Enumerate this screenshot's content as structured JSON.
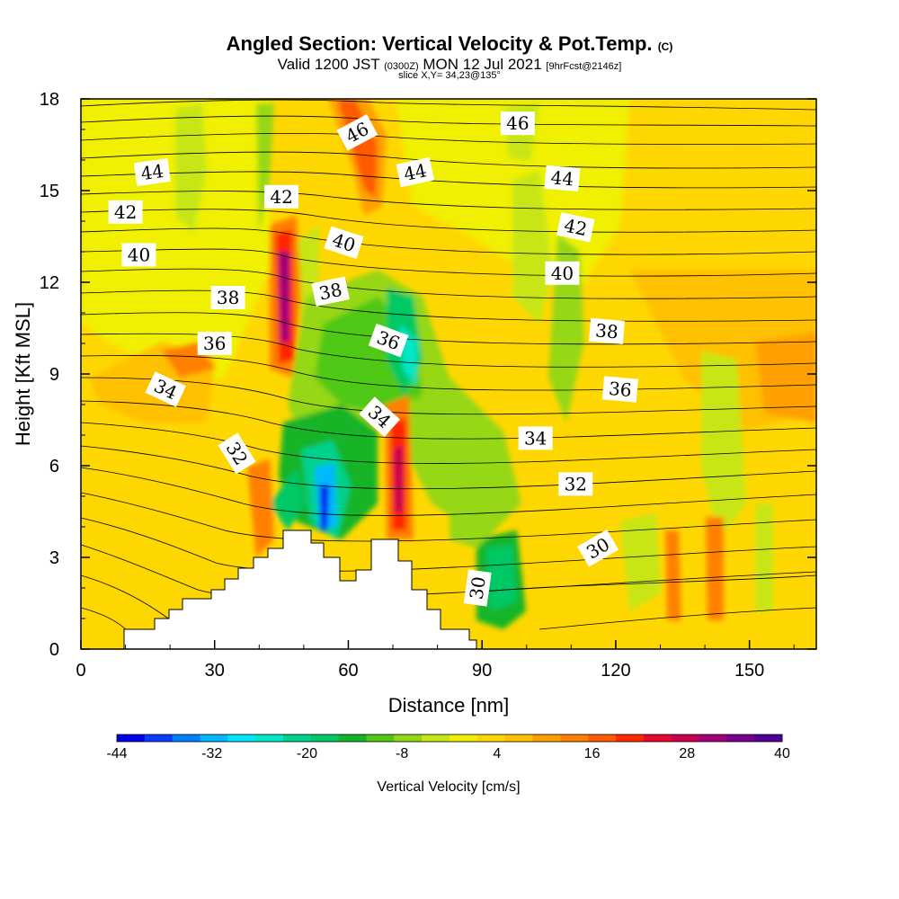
{
  "header": {
    "title_main": "Angled Section: Vertical Velocity & Pot.Temp.",
    "title_unit": "(C)",
    "valid_prefix": "Valid 1200 JST",
    "valid_utc": "(0300Z)",
    "valid_date": "MON 12 Jul 2021",
    "forecast": "[9hrFcst@2146z]",
    "slice": "slice X,Y= 34,23@135°"
  },
  "chart_data": {
    "type": "heatmap",
    "xlabel": "Distance [nm]",
    "ylabel": "Height [Kft MSL]",
    "xlim": [
      0,
      165
    ],
    "ylim": [
      0,
      18
    ],
    "x_ticks": [
      "0",
      "30",
      "60",
      "90",
      "120",
      "150"
    ],
    "x_tick_values": [
      0,
      30,
      60,
      90,
      120,
      150
    ],
    "y_ticks": [
      "0",
      "3",
      "6",
      "9",
      "12",
      "15",
      "18"
    ],
    "y_tick_values": [
      0,
      3,
      6,
      9,
      12,
      15,
      18
    ],
    "colorbar": {
      "title": "Vertical Velocity [cm/s]",
      "tick_labels": [
        "-44",
        "-32",
        "-20",
        "-8",
        "4",
        "16",
        "28",
        "40"
      ],
      "min": -44,
      "max": 40,
      "colors": [
        "#0000ee",
        "#0a3cff",
        "#0080ff",
        "#00b8ff",
        "#00e6ff",
        "#00e6c8",
        "#00d28c",
        "#00c864",
        "#14b428",
        "#50c814",
        "#96d714",
        "#c8e614",
        "#f0f000",
        "#ffd700",
        "#ffc000",
        "#ffa000",
        "#ff8000",
        "#ff5a00",
        "#ff2800",
        "#e60a32",
        "#c80050",
        "#a00078",
        "#78008c",
        "#500096"
      ]
    },
    "contour_labels": [
      {
        "text": "46",
        "x": 62,
        "y": 16.9,
        "angle": -28
      },
      {
        "text": "46",
        "x": 98,
        "y": 17.2,
        "angle": 0
      },
      {
        "text": "44",
        "x": 16,
        "y": 15.6,
        "angle": -8
      },
      {
        "text": "44",
        "x": 75,
        "y": 15.6,
        "angle": -12
      },
      {
        "text": "44",
        "x": 108,
        "y": 15.4,
        "angle": 5
      },
      {
        "text": "42",
        "x": 10,
        "y": 14.3,
        "angle": 0
      },
      {
        "text": "42",
        "x": 45,
        "y": 14.8,
        "angle": 0
      },
      {
        "text": "42",
        "x": 111,
        "y": 13.8,
        "angle": 12
      },
      {
        "text": "40",
        "x": 13,
        "y": 12.9,
        "angle": 0
      },
      {
        "text": "40",
        "x": 59,
        "y": 13.3,
        "angle": 18
      },
      {
        "text": "40",
        "x": 108,
        "y": 12.3,
        "angle": 0
      },
      {
        "text": "38",
        "x": 33,
        "y": 11.5,
        "angle": 0
      },
      {
        "text": "38",
        "x": 56,
        "y": 11.7,
        "angle": -12
      },
      {
        "text": "38",
        "x": 118,
        "y": 10.4,
        "angle": 5
      },
      {
        "text": "36",
        "x": 30,
        "y": 10.0,
        "angle": 0
      },
      {
        "text": "36",
        "x": 69,
        "y": 10.1,
        "angle": 20
      },
      {
        "text": "36",
        "x": 121,
        "y": 8.5,
        "angle": 5
      },
      {
        "text": "34",
        "x": 19,
        "y": 8.5,
        "angle": 25
      },
      {
        "text": "34",
        "x": 67,
        "y": 7.6,
        "angle": 42
      },
      {
        "text": "34",
        "x": 102,
        "y": 6.9,
        "angle": 0
      },
      {
        "text": "32",
        "x": 35,
        "y": 6.4,
        "angle": 58
      },
      {
        "text": "32",
        "x": 111,
        "y": 5.4,
        "angle": 0
      },
      {
        "text": "30",
        "x": 116,
        "y": 3.3,
        "angle": -30
      },
      {
        "text": "30",
        "x": 89,
        "y": 2.0,
        "angle": -82
      }
    ],
    "grid": false
  }
}
